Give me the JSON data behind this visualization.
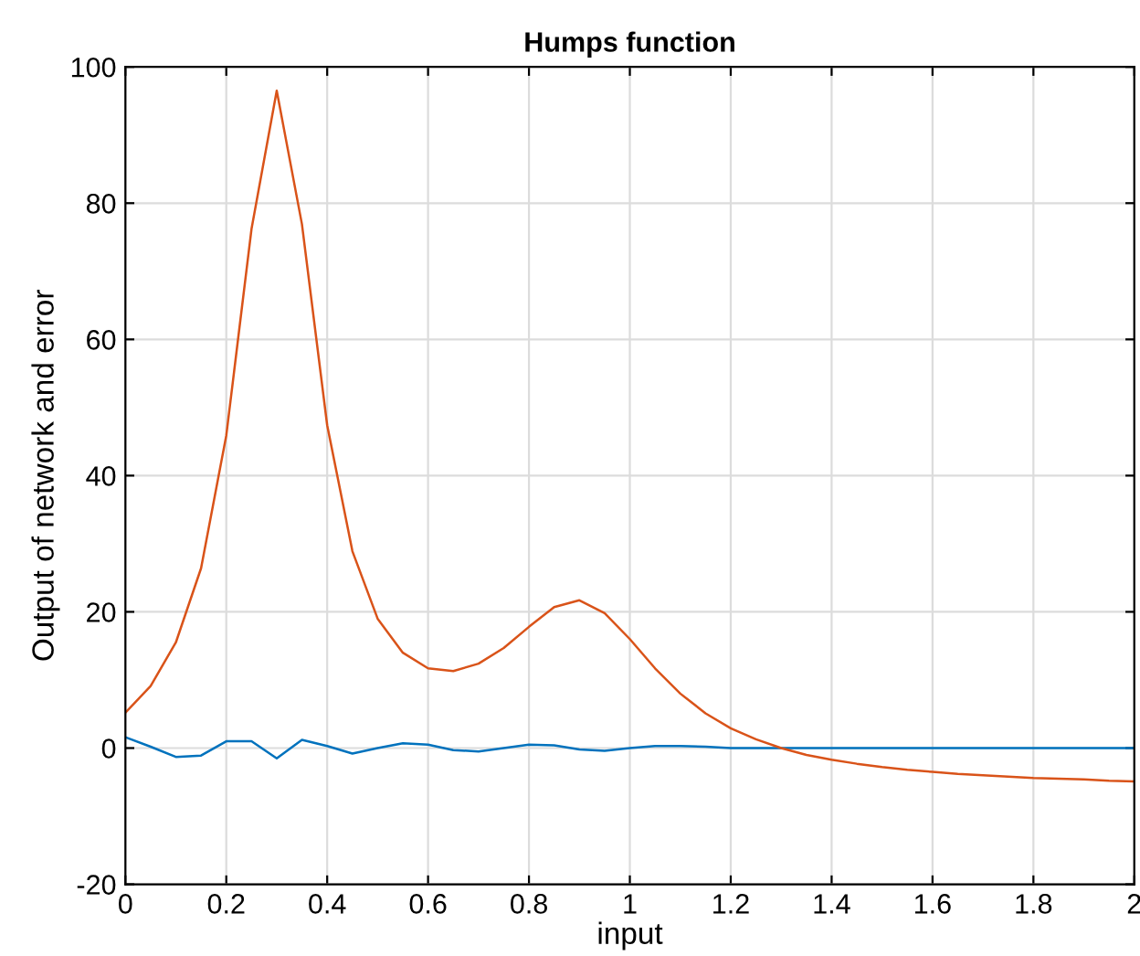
{
  "chart_data": {
    "type": "line",
    "title": "Humps function",
    "xlabel": "input",
    "ylabel": "Output of network and error",
    "x": [
      0,
      0.05,
      0.1,
      0.15,
      0.2,
      0.25,
      0.3,
      0.35,
      0.4,
      0.45,
      0.5,
      0.55,
      0.6,
      0.65,
      0.7,
      0.75,
      0.8,
      0.85,
      0.9,
      0.95,
      1.0,
      1.05,
      1.1,
      1.15,
      1.2,
      1.25,
      1.3,
      1.35,
      1.4,
      1.45,
      1.5,
      1.55,
      1.6,
      1.65,
      1.7,
      1.75,
      1.8,
      1.85,
      1.9,
      1.95,
      2.0
    ],
    "series": [
      {
        "color": "#0072bd",
        "values": [
          1.6,
          0.2,
          -1.3,
          -1.1,
          1.0,
          1.0,
          -1.5,
          1.2,
          0.3,
          -0.8,
          0,
          0.7,
          0.5,
          -0.3,
          -0.5,
          0,
          0.5,
          0.4,
          -0.2,
          -0.4,
          0,
          0.3,
          0.3,
          0.2,
          0,
          0,
          0,
          0,
          0,
          0,
          0,
          0,
          0,
          0,
          0,
          0,
          0,
          0,
          0,
          0,
          0
        ]
      },
      {
        "color": "#d95319",
        "values": [
          5.2,
          9.1,
          15.5,
          26.4,
          45.9,
          76.2,
          96.5,
          76.9,
          47.4,
          28.9,
          19.0,
          14.0,
          11.7,
          11.3,
          12.4,
          14.7,
          17.8,
          20.7,
          21.7,
          19.8,
          16.0,
          11.7,
          8.0,
          5.1,
          2.9,
          1.3,
          0.0,
          -1.0,
          -1.7,
          -2.3,
          -2.8,
          -3.2,
          -3.5,
          -3.8,
          -4.0,
          -4.2,
          -4.4,
          -4.5,
          -4.6,
          -4.8,
          -4.9
        ]
      }
    ],
    "xlim": [
      0,
      2
    ],
    "ylim": [
      -20,
      100
    ],
    "xticks": [
      0,
      0.2,
      0.4,
      0.6,
      0.8,
      1,
      1.2,
      1.4,
      1.6,
      1.8,
      2
    ],
    "yticks": [
      -20,
      0,
      20,
      40,
      60,
      80,
      100
    ],
    "grid": true,
    "line_style": "solid",
    "marker": "none"
  }
}
